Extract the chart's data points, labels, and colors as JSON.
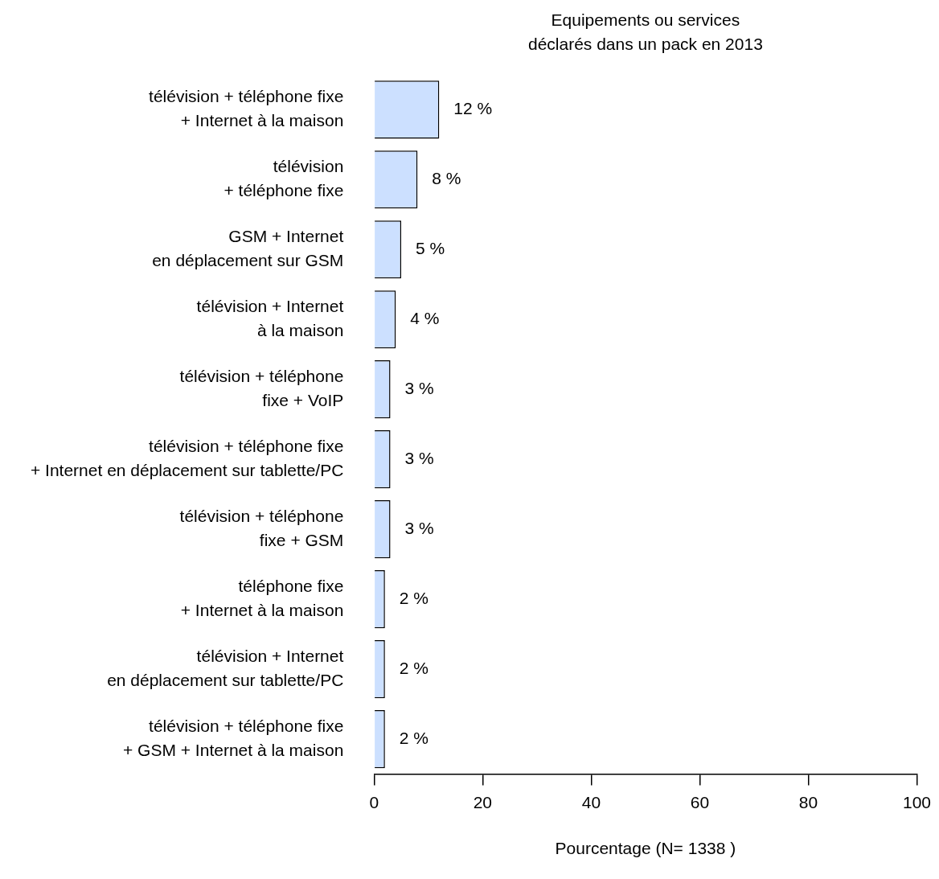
{
  "chart_data": {
    "type": "bar",
    "orientation": "horizontal",
    "title": "Equipements ou services\ndéclarés dans un pack en 2013",
    "xlabel": "Pourcentage (N= 1338 )",
    "categories": [
      "télévision + téléphone fixe\n+ Internet à la maison",
      "télévision\n+ téléphone fixe",
      "GSM + Internet\nen déplacement sur GSM",
      "télévision + Internet\nà la maison",
      "télévision + téléphone\nfixe + VoIP",
      "télévision + téléphone fixe\n+ Internet en déplacement sur tablette/PC",
      "télévision + téléphone\nfixe + GSM",
      "téléphone fixe\n+ Internet à la maison",
      "télévision + Internet\nen déplacement sur tablette/PC",
      "télévision + téléphone fixe\n+ GSM + Internet à la maison"
    ],
    "values": [
      12,
      8,
      5,
      4,
      3,
      3,
      3,
      2,
      2,
      2
    ],
    "value_labels": [
      "12 %",
      "8 %",
      "5 %",
      "4 %",
      "3 %",
      "3 %",
      "3 %",
      "2 %",
      "2 %",
      "2 %"
    ],
    "color": "#cce0ff",
    "xlim": [
      0,
      100
    ],
    "xticks": [
      0,
      20,
      40,
      60,
      80,
      100
    ],
    "grid": false,
    "legend": false
  }
}
